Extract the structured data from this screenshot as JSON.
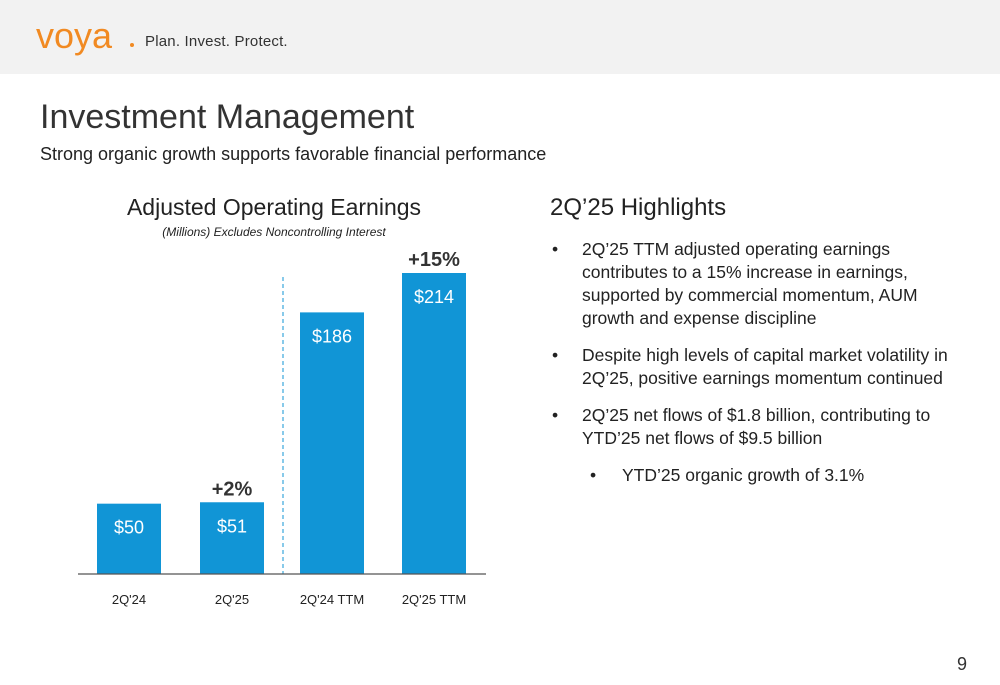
{
  "header": {
    "logo_text": "voya",
    "tagline": "Plan. Invest. Protect."
  },
  "page": {
    "title": "Investment Management",
    "subtitle": "Strong organic growth supports favorable financial performance",
    "number": "9"
  },
  "colors": {
    "bar": "#1195d6",
    "brand_orange": "#f18a22",
    "divider": "#1195d6",
    "axis": "#555555"
  },
  "chart_data": {
    "type": "bar",
    "title": "Adjusted Operating Earnings",
    "subtitle": "(Millions) Excludes Noncontrolling Interest",
    "categories": [
      "2Q'24",
      "2Q'25",
      "2Q'24 TTM",
      "2Q'25 TTM"
    ],
    "values": [
      50,
      51,
      186,
      214
    ],
    "data_labels": [
      "$50",
      "$51",
      "$186",
      "$214"
    ],
    "annotations": [
      {
        "category": "2Q'25",
        "text": "+2%"
      },
      {
        "category": "2Q'25 TTM",
        "text": "+15%"
      }
    ],
    "ylim": [
      0,
      214
    ],
    "grid": false,
    "xlabel": "",
    "ylabel": ""
  },
  "highlights": {
    "title": "2Q’25 Highlights",
    "bullet_glyph": "•",
    "items": [
      "2Q’25 TTM adjusted operating earnings contributes to a 15% increase in earnings, supported by commercial momentum, AUM growth and expense discipline",
      "Despite high levels of capital market volatility in 2Q’25, positive earnings momentum continued",
      "2Q’25 net flows of $1.8 billion, contributing to YTD’25 net flows of $9.5 billion"
    ],
    "sub_items": [
      "YTD’25 organic growth of 3.1%"
    ]
  }
}
